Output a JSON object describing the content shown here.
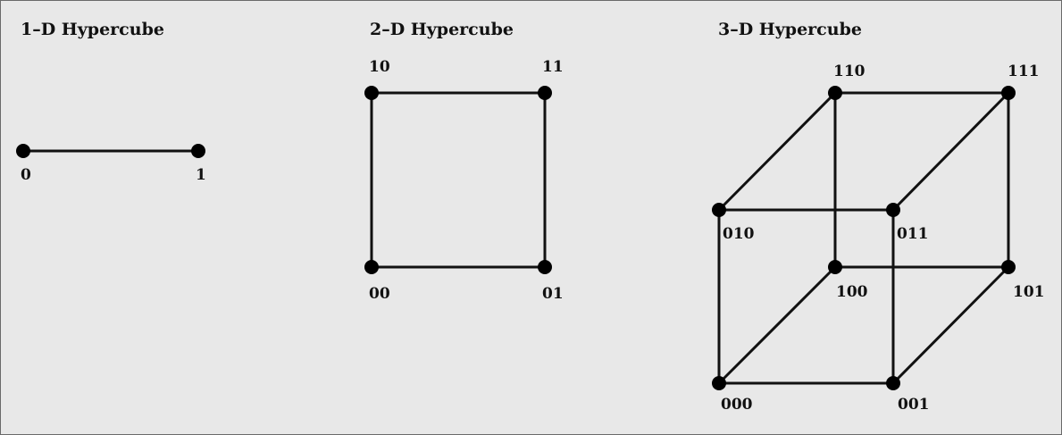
{
  "figure": {
    "background": "#e8e8e8",
    "stroke_color": "#111111",
    "cubes": [
      {
        "id": "cube1",
        "title": "1–D Hypercube",
        "nodes": [
          {
            "id": "0",
            "label": "0"
          },
          {
            "id": "1",
            "label": "1"
          }
        ],
        "edges": [
          [
            "0",
            "1"
          ]
        ]
      },
      {
        "id": "cube2",
        "title": "2–D Hypercube",
        "nodes": [
          {
            "id": "10",
            "label": "10"
          },
          {
            "id": "11",
            "label": "11"
          },
          {
            "id": "00",
            "label": "00"
          },
          {
            "id": "01",
            "label": "01"
          }
        ],
        "edges": [
          [
            "10",
            "11"
          ],
          [
            "10",
            "00"
          ],
          [
            "11",
            "01"
          ],
          [
            "00",
            "01"
          ]
        ]
      },
      {
        "id": "cube3",
        "title": "3–D Hypercube",
        "nodes": [
          {
            "id": "110",
            "label": "110"
          },
          {
            "id": "111",
            "label": "111"
          },
          {
            "id": "010",
            "label": "010"
          },
          {
            "id": "011",
            "label": "011"
          },
          {
            "id": "100",
            "label": "100"
          },
          {
            "id": "101",
            "label": "101"
          },
          {
            "id": "000",
            "label": "000"
          },
          {
            "id": "001",
            "label": "001"
          }
        ],
        "edges": [
          [
            "110",
            "111"
          ],
          [
            "010",
            "011"
          ],
          [
            "100",
            "101"
          ],
          [
            "000",
            "001"
          ],
          [
            "110",
            "100"
          ],
          [
            "111",
            "101"
          ],
          [
            "010",
            "000"
          ],
          [
            "011",
            "001"
          ],
          [
            "110",
            "010"
          ],
          [
            "111",
            "011"
          ],
          [
            "100",
            "000"
          ],
          [
            "101",
            "001"
          ]
        ]
      }
    ]
  }
}
